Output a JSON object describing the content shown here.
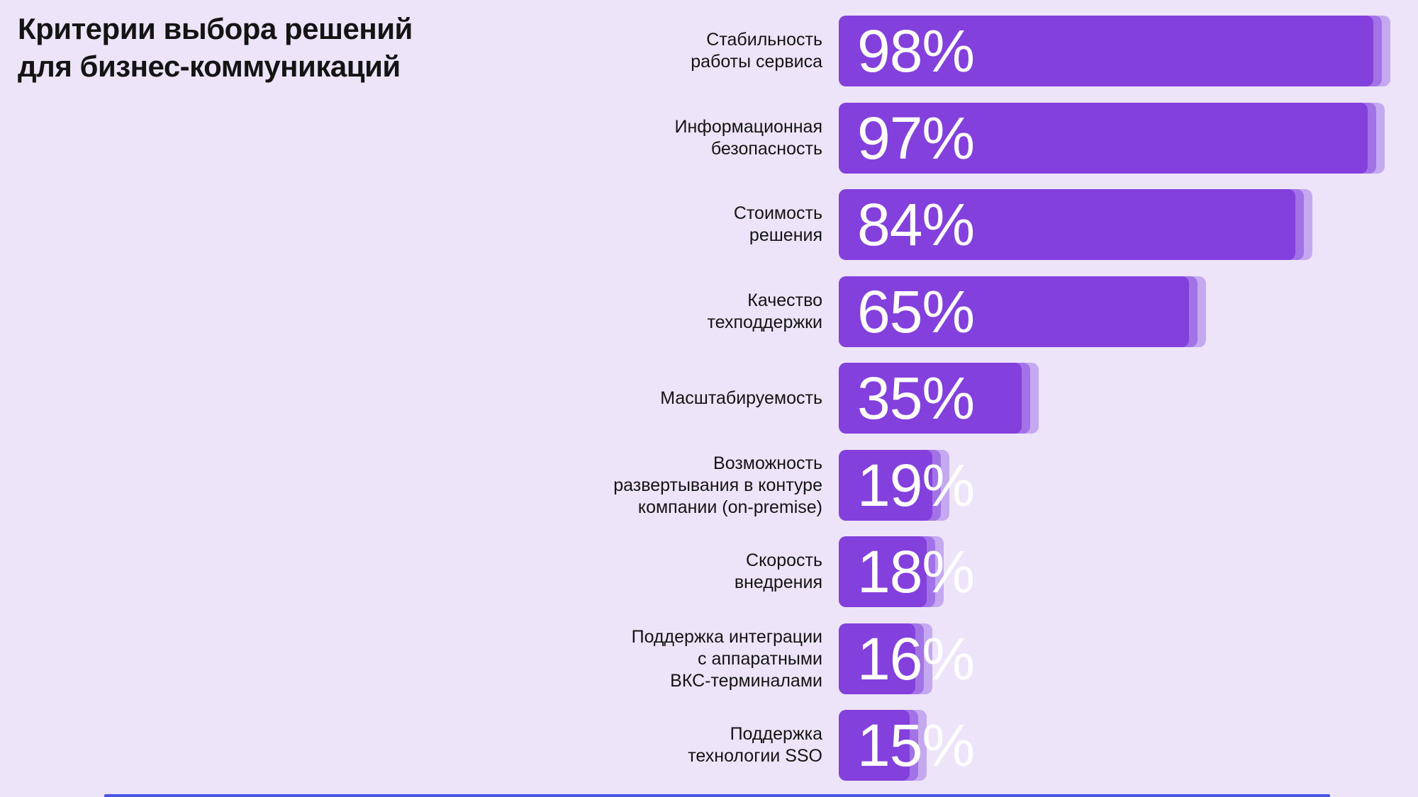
{
  "title": {
    "line1": "Критерии выбора решений",
    "line2": "для бизнес-коммуникаций"
  },
  "chart_data": {
    "type": "bar",
    "orientation": "horizontal",
    "title": "Критерии выбора решений для бизнес-коммуникаций",
    "unit": "%",
    "xlim": [
      0,
      100
    ],
    "grid": false,
    "legend": false,
    "categories": [
      "Стабильность работы сервиса",
      "Информационная безопасность",
      "Стоимость решения",
      "Качество техподдержки",
      "Масштабируемость",
      "Возможность развертывания в контуре компании (on-premise)",
      "Скорость внедрения",
      "Поддержка интеграции с аппаратными ВКС-терминалами",
      "Поддержка технологии SSO"
    ],
    "category_lines": [
      [
        "Стабильность",
        "работы сервиса"
      ],
      [
        "Информационная",
        "безопасность"
      ],
      [
        "Стоимость",
        "решения"
      ],
      [
        "Качество",
        "техподдержки"
      ],
      [
        "Масштабируемость"
      ],
      [
        "Возможность",
        "развертывания в контуре",
        "компании (on-premise)"
      ],
      [
        "Скорость",
        "внедрения"
      ],
      [
        "Поддержка интеграции",
        "с аппаратными",
        "ВКС-терминалами"
      ],
      [
        "Поддержка",
        "технологии SSO"
      ]
    ],
    "values": [
      98,
      97,
      84,
      65,
      35,
      19,
      18,
      16,
      15
    ],
    "value_labels": [
      "98%",
      "97%",
      "84%",
      "65%",
      "35%",
      "19%",
      "18%",
      "16%",
      "15%"
    ]
  },
  "colors": {
    "background": "#EDE4F9",
    "bar_main": "#8440DC",
    "bar_layer_mid": "#A273E6",
    "bar_layer_light": "#C4A9F0",
    "text_dark": "#141414",
    "value_text": "#FFFFFF",
    "bottom_strip": "#4D55E6"
  }
}
